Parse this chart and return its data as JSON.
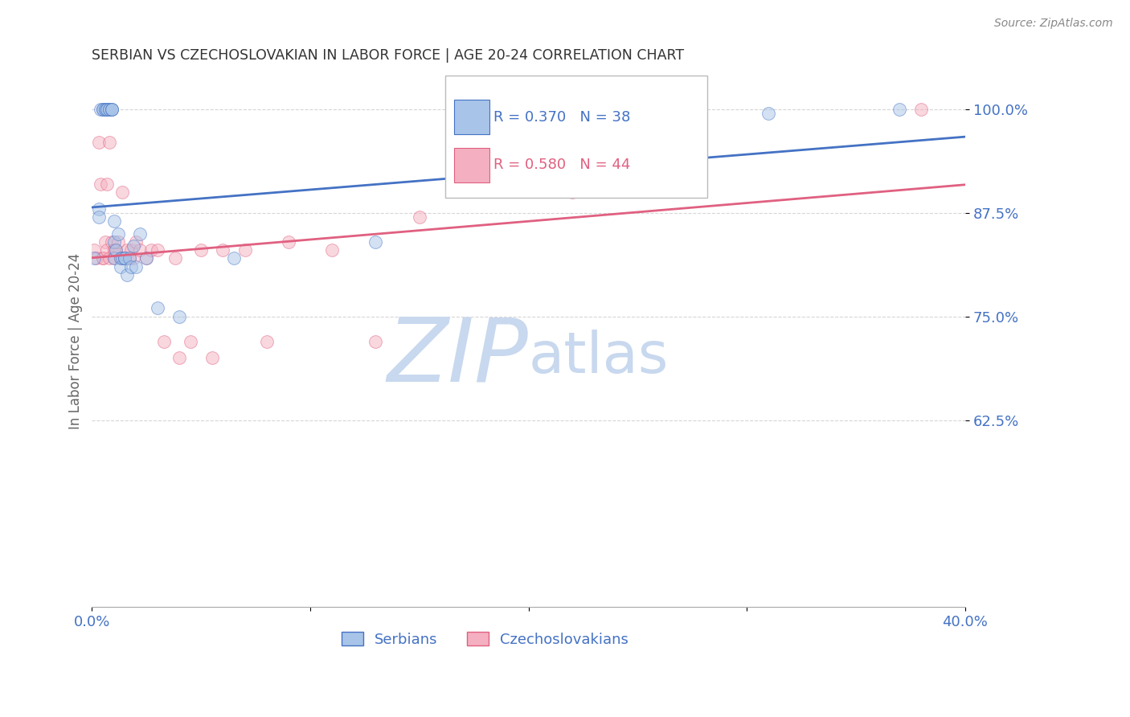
{
  "title": "SERBIAN VS CZECHOSLOVAKIAN IN LABOR FORCE | AGE 20-24 CORRELATION CHART",
  "source": "Source: ZipAtlas.com",
  "ylabel": "In Labor Force | Age 20-24",
  "legend_serbian": "Serbians",
  "legend_czech": "Czechoslovakians",
  "R_serbian": 0.37,
  "N_serbian": 38,
  "R_czech": 0.58,
  "N_czech": 44,
  "xmin": 0.0,
  "xmax": 0.4,
  "ymin": 0.4,
  "ymax": 1.04,
  "yticks": [
    0.625,
    0.75,
    0.875,
    1.0
  ],
  "ytick_labels": [
    "62.5%",
    "75.0%",
    "87.5%",
    "100.0%"
  ],
  "color_serbian": "#a8c4e8",
  "color_czech": "#f4b0c0",
  "color_line_serbian": "#4472c4",
  "color_line_czech": "#e06080",
  "color_axis_labels": "#4472c4",
  "color_title": "#333333",
  "dot_size": 130,
  "dot_alpha": 0.5,
  "line_width": 2.0,
  "serbian_x": [
    0.001,
    0.003,
    0.003,
    0.004,
    0.005,
    0.005,
    0.006,
    0.006,
    0.007,
    0.007,
    0.008,
    0.008,
    0.009,
    0.009,
    0.009,
    0.01,
    0.01,
    0.01,
    0.011,
    0.012,
    0.013,
    0.013,
    0.014,
    0.015,
    0.015,
    0.016,
    0.017,
    0.018,
    0.019,
    0.02,
    0.022,
    0.025,
    0.03,
    0.04,
    0.065,
    0.13,
    0.31,
    0.37
  ],
  "serbian_y": [
    0.82,
    0.88,
    0.87,
    1.0,
    1.0,
    1.0,
    1.0,
    1.0,
    1.0,
    1.0,
    1.0,
    1.0,
    1.0,
    1.0,
    1.0,
    0.865,
    0.84,
    0.82,
    0.83,
    0.85,
    0.82,
    0.81,
    0.82,
    0.82,
    0.82,
    0.8,
    0.82,
    0.81,
    0.835,
    0.81,
    0.85,
    0.82,
    0.76,
    0.75,
    0.82,
    0.84,
    0.995,
    1.0
  ],
  "czech_x": [
    0.001,
    0.002,
    0.003,
    0.004,
    0.005,
    0.005,
    0.006,
    0.007,
    0.007,
    0.008,
    0.008,
    0.009,
    0.01,
    0.01,
    0.01,
    0.011,
    0.012,
    0.013,
    0.014,
    0.015,
    0.016,
    0.017,
    0.018,
    0.019,
    0.02,
    0.022,
    0.025,
    0.027,
    0.03,
    0.033,
    0.038,
    0.04,
    0.045,
    0.05,
    0.055,
    0.06,
    0.07,
    0.08,
    0.09,
    0.11,
    0.13,
    0.15,
    0.22,
    0.38
  ],
  "czech_y": [
    0.83,
    0.82,
    0.96,
    0.91,
    0.82,
    0.82,
    0.84,
    0.91,
    0.83,
    0.82,
    0.96,
    0.84,
    0.83,
    0.83,
    0.82,
    0.83,
    0.84,
    0.82,
    0.9,
    0.82,
    0.83,
    0.82,
    0.83,
    0.82,
    0.84,
    0.83,
    0.82,
    0.83,
    0.83,
    0.72,
    0.82,
    0.7,
    0.72,
    0.83,
    0.7,
    0.83,
    0.83,
    0.72,
    0.84,
    0.83,
    0.72,
    0.87,
    0.9,
    1.0
  ],
  "watermark_zip": "ZIP",
  "watermark_atlas": "atlas",
  "watermark_color_zip": "#c8d8ee",
  "watermark_color_atlas": "#c8d8ee",
  "watermark_fontsize": 80
}
